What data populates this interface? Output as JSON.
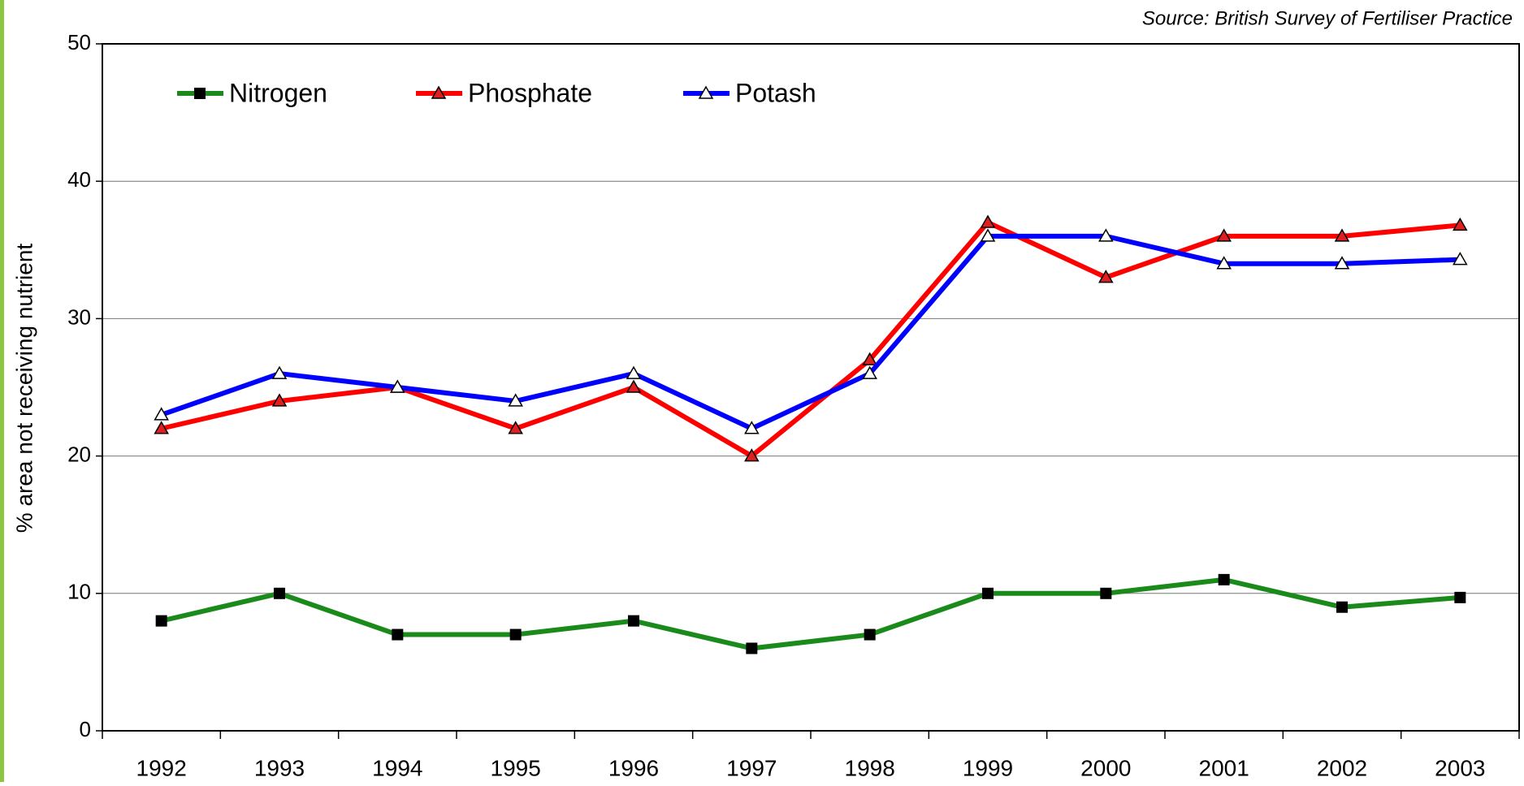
{
  "chart_data": {
    "type": "line",
    "source": "Source:  British Survey of Fertiliser Practice",
    "y_label": "% area not receiving nutrient",
    "categories": [
      "1992",
      "1993",
      "1994",
      "1995",
      "1996",
      "1997",
      "1998",
      "1999",
      "2000",
      "2001",
      "2002",
      "2003"
    ],
    "series": [
      {
        "name": "Nitrogen",
        "color": "#1a8a1a",
        "marker": "square",
        "marker_fill": "#000000",
        "values": [
          8,
          10,
          7,
          7,
          8,
          6,
          7,
          10,
          10,
          11,
          9,
          9.7
        ]
      },
      {
        "name": "Phosphate",
        "color": "#ff0000",
        "marker": "triangle",
        "marker_fill": "#e02020",
        "values": [
          22,
          24,
          25,
          22,
          25,
          20,
          27,
          37,
          33,
          36,
          36,
          36.8
        ]
      },
      {
        "name": "Potash",
        "color": "#0000ff",
        "marker": "triangle",
        "marker_fill": "#ffffff",
        "values": [
          23,
          26,
          25,
          24,
          26,
          22,
          26,
          36,
          36,
          34,
          34,
          34.3
        ]
      }
    ],
    "ylim": [
      0,
      50
    ],
    "yticks": [
      0,
      10,
      20,
      30,
      40,
      50
    ],
    "grid": true
  }
}
